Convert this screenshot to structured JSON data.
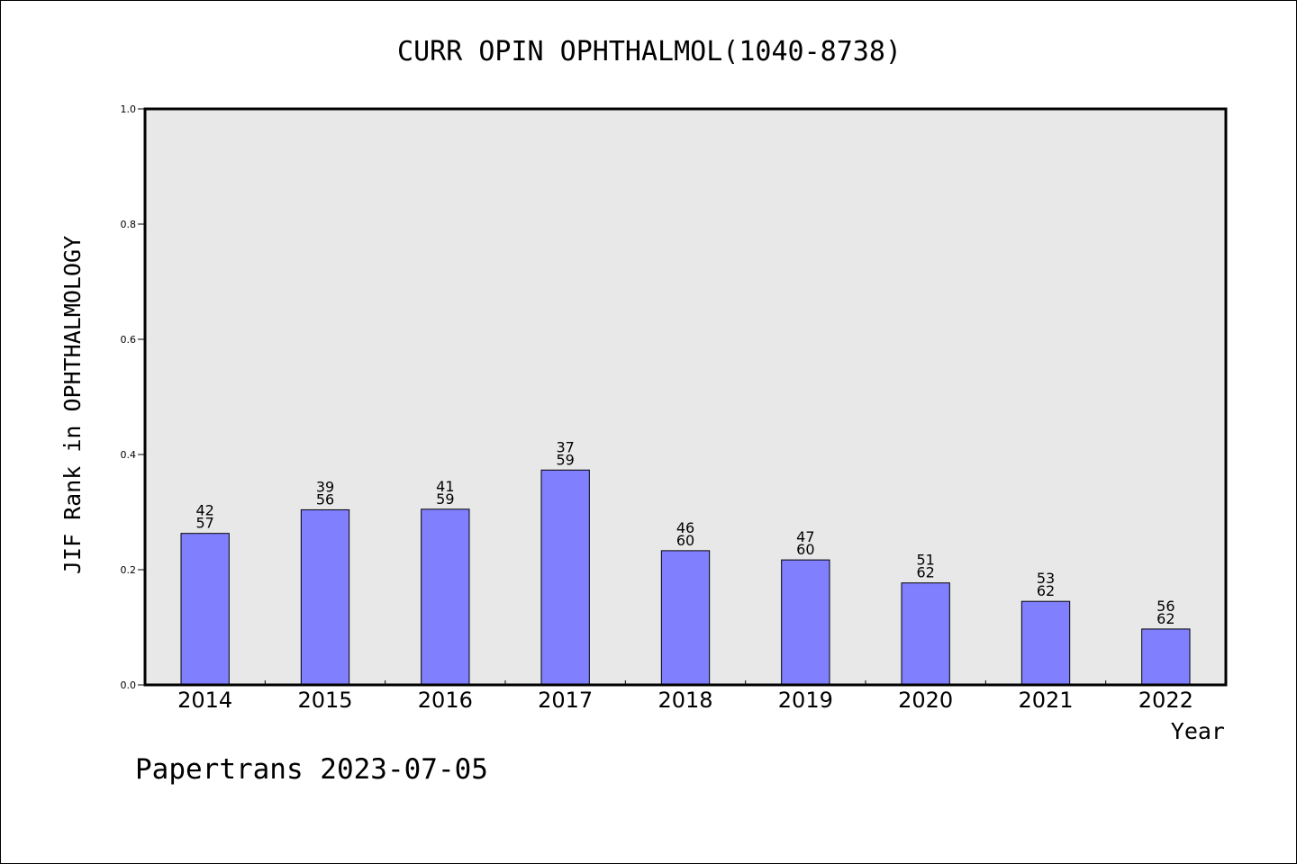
{
  "chart_data": {
    "type": "bar",
    "title": "CURR OPIN OPHTHALMOL(1040-8738)",
    "xlabel": "Year",
    "ylabel": "JIF Rank in OPHTHALMOLOGY",
    "ylim": [
      0.0,
      1.0
    ],
    "yticks": [
      "0.0",
      "0.2",
      "0.4",
      "0.6",
      "0.8",
      "1.0"
    ],
    "grid": false,
    "categories": [
      "2014",
      "2015",
      "2016",
      "2017",
      "2018",
      "2019",
      "2020",
      "2021",
      "2022"
    ],
    "values": [
      0.263,
      0.304,
      0.305,
      0.373,
      0.233,
      0.217,
      0.177,
      0.145,
      0.097
    ],
    "rank_labels": [
      {
        "rank": "42",
        "total": "57"
      },
      {
        "rank": "39",
        "total": "56"
      },
      {
        "rank": "41",
        "total": "59"
      },
      {
        "rank": "37",
        "total": "59"
      },
      {
        "rank": "46",
        "total": "60"
      },
      {
        "rank": "47",
        "total": "60"
      },
      {
        "rank": "51",
        "total": "62"
      },
      {
        "rank": "53",
        "total": "62"
      },
      {
        "rank": "56",
        "total": "62"
      }
    ],
    "colors": {
      "bar": "#8080ff",
      "plot_background": "#e8e8e8",
      "axes": "#000000"
    }
  },
  "footer": "Papertrans 2023-07-05"
}
